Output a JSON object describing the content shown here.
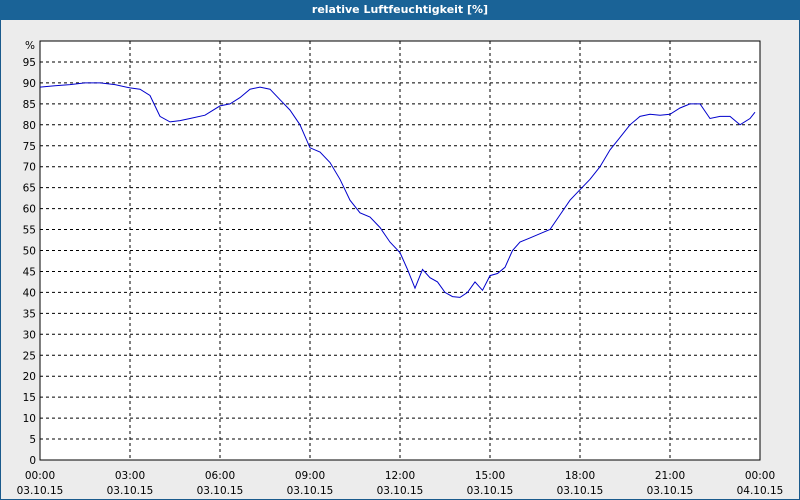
{
  "chart_data": {
    "type": "line",
    "title": "relative Luftfeuchtigkeit [%]",
    "ylabel": "%",
    "ylim": [
      0,
      100
    ],
    "yticks": [
      0,
      5,
      10,
      15,
      20,
      25,
      30,
      35,
      40,
      45,
      50,
      55,
      60,
      65,
      70,
      75,
      80,
      85,
      90,
      95
    ],
    "xlim_hours": [
      0,
      24
    ],
    "xticks": [
      {
        "time": "00:00",
        "date": "03.10.15"
      },
      {
        "time": "03:00",
        "date": "03.10.15"
      },
      {
        "time": "06:00",
        "date": "03.10.15"
      },
      {
        "time": "09:00",
        "date": "03.10.15"
      },
      {
        "time": "12:00",
        "date": "03.10.15"
      },
      {
        "time": "15:00",
        "date": "03.10.15"
      },
      {
        "time": "18:00",
        "date": "03.10.15"
      },
      {
        "time": "21:00",
        "date": "03.10.15"
      },
      {
        "time": "00:00",
        "date": "04.10.15"
      }
    ],
    "grid": true,
    "line_color": "#0000cc",
    "series": [
      {
        "name": "",
        "x": [
          "00:00",
          "00:30",
          "01:00",
          "01:30",
          "02:00",
          "02:30",
          "03:00",
          "03:20",
          "03:40",
          "04:00",
          "04:20",
          "04:40",
          "05:00",
          "05:30",
          "06:00",
          "06:20",
          "06:40",
          "07:00",
          "07:20",
          "07:40",
          "08:00",
          "08:20",
          "08:40",
          "09:00",
          "09:20",
          "09:40",
          "10:00",
          "10:20",
          "10:40",
          "11:00",
          "11:20",
          "11:40",
          "12:00",
          "12:15",
          "12:30",
          "12:45",
          "13:00",
          "13:15",
          "13:30",
          "13:45",
          "14:00",
          "14:15",
          "14:30",
          "14:45",
          "15:00",
          "15:15",
          "15:30",
          "15:45",
          "16:00",
          "16:20",
          "16:40",
          "17:00",
          "17:20",
          "17:40",
          "18:00",
          "18:20",
          "18:40",
          "19:00",
          "19:20",
          "19:40",
          "20:00",
          "20:20",
          "20:40",
          "21:00",
          "21:20",
          "21:40",
          "22:00",
          "22:20",
          "22:40",
          "23:00",
          "23:20",
          "23:40",
          "23:50"
        ],
        "values": [
          89,
          89.3,
          89.6,
          90,
          90,
          89.6,
          88.8,
          88.5,
          87,
          82,
          80.7,
          81,
          81.5,
          82.3,
          84.5,
          85,
          86.5,
          88.5,
          89,
          88.5,
          86,
          83.5,
          80,
          74.5,
          73.5,
          71,
          67,
          62,
          59,
          58,
          55.5,
          52,
          49.5,
          45.5,
          41,
          45.5,
          43.5,
          42.5,
          40,
          39,
          38.8,
          40,
          42.5,
          40.5,
          44,
          44.5,
          46,
          50,
          52,
          53,
          54,
          55,
          58.5,
          62,
          64.5,
          67,
          70,
          74,
          77,
          80,
          82,
          82.5,
          82.3,
          82.5,
          84,
          85,
          85,
          81.5,
          82,
          82,
          80,
          81.5,
          83
        ]
      }
    ]
  }
}
